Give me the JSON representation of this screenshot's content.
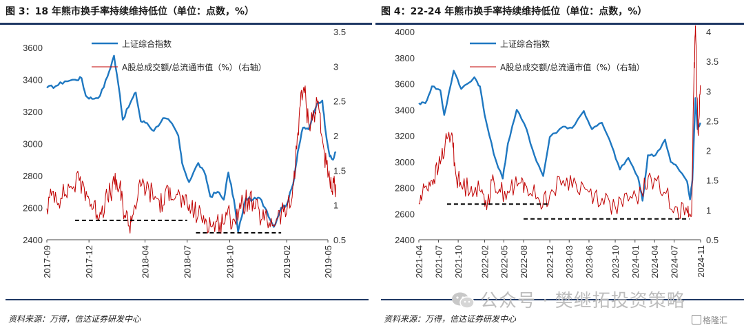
{
  "watermark": "公众号 · 樊继拓投资策略",
  "logo_text": "格隆汇",
  "colors": {
    "index_line": "#1f78c1",
    "turnover_line": "#c00000",
    "rule": "#1f3864",
    "support_line": "#000000"
  },
  "panels": [
    {
      "title": "图 3：18 年熊市换手率持续维持低位（单位：点数，%）",
      "source": "资料来源：万得，信达证券研发中心",
      "chart_data": {
        "type": "line",
        "title": "图 3：18 年熊市换手率持续维持低位（单位：点数，%）",
        "x_ticks": [
          "2017-09",
          "2017-12",
          "2018-04",
          "2018-07",
          "2018-10",
          "2019-02",
          "2019-05"
        ],
        "x_range": [
          "2017-09-01",
          "2019-05-01"
        ],
        "y_left": {
          "min": 2400,
          "max": 3700,
          "ticks": [
            2400,
            2600,
            2800,
            3000,
            3200,
            3400,
            3600
          ]
        },
        "y_right": {
          "min": 0.5,
          "max": 3.5,
          "ticks": [
            0.5,
            1,
            1.5,
            2,
            2.5,
            3,
            3.5
          ]
        },
        "legend": [
          "上证综合指数",
          "A股总成交额/总流通市值（%）（右轴）"
        ],
        "series": [
          {
            "name": "上证综合指数",
            "axis": "left",
            "style": "smooth",
            "points": [
              [
                "2017-09-01",
                3350
              ],
              [
                "2017-09-20",
                3360
              ],
              [
                "2017-10-10",
                3390
              ],
              [
                "2017-11-01",
                3400
              ],
              [
                "2017-11-15",
                3410
              ],
              [
                "2017-11-24",
                3300
              ],
              [
                "2017-12-08",
                3280
              ],
              [
                "2017-12-25",
                3300
              ],
              [
                "2018-01-10",
                3420
              ],
              [
                "2018-01-24",
                3550
              ],
              [
                "2018-02-06",
                3300
              ],
              [
                "2018-02-12",
                3150
              ],
              [
                "2018-03-01",
                3260
              ],
              [
                "2018-03-12",
                3320
              ],
              [
                "2018-03-23",
                3140
              ],
              [
                "2018-04-05",
                3130
              ],
              [
                "2018-04-20",
                3080
              ],
              [
                "2018-05-10",
                3160
              ],
              [
                "2018-05-25",
                3140
              ],
              [
                "2018-06-12",
                3050
              ],
              [
                "2018-06-20",
                2880
              ],
              [
                "2018-07-05",
                2760
              ],
              [
                "2018-07-25",
                2880
              ],
              [
                "2018-08-10",
                2800
              ],
              [
                "2018-08-20",
                2670
              ],
              [
                "2018-09-05",
                2700
              ],
              [
                "2018-09-18",
                2650
              ],
              [
                "2018-09-28",
                2820
              ],
              [
                "2018-10-10",
                2650
              ],
              [
                "2018-10-19",
                2450
              ],
              [
                "2018-11-05",
                2660
              ],
              [
                "2018-11-20",
                2650
              ],
              [
                "2018-12-05",
                2660
              ],
              [
                "2018-12-20",
                2580
              ],
              [
                "2019-01-04",
                2480
              ],
              [
                "2019-01-20",
                2600
              ],
              [
                "2019-02-01",
                2620
              ],
              [
                "2019-02-15",
                2750
              ],
              [
                "2019-02-25",
                2950
              ],
              [
                "2019-03-08",
                3100
              ],
              [
                "2019-03-20",
                3090
              ],
              [
                "2019-04-08",
                3250
              ],
              [
                "2019-04-19",
                3270
              ],
              [
                "2019-04-26",
                3080
              ],
              [
                "2019-05-05",
                2920
              ],
              [
                "2019-05-12",
                2900
              ],
              [
                "2019-05-18",
                2950
              ]
            ]
          },
          {
            "name": "A股总成交额/总流通市值（%）（右轴）",
            "axis": "right",
            "style": "jagged",
            "points": [
              [
                "2017-09-01",
                0.95
              ],
              [
                "2017-09-15",
                1.2
              ],
              [
                "2017-10-01",
                1.1
              ],
              [
                "2017-10-20",
                1.25
              ],
              [
                "2017-11-10",
                1.35
              ],
              [
                "2017-11-25",
                1.2
              ],
              [
                "2017-12-10",
                0.95
              ],
              [
                "2017-12-25",
                0.9
              ],
              [
                "2018-01-10",
                1.1
              ],
              [
                "2018-01-25",
                1.3
              ],
              [
                "2018-02-05",
                1.25
              ],
              [
                "2018-02-12",
                1.0
              ],
              [
                "2018-02-26",
                0.7
              ],
              [
                "2018-03-10",
                1.0
              ],
              [
                "2018-03-25",
                1.3
              ],
              [
                "2018-04-10",
                1.2
              ],
              [
                "2018-04-25",
                1.1
              ],
              [
                "2018-05-10",
                1.0
              ],
              [
                "2018-05-25",
                1.25
              ],
              [
                "2018-06-10",
                1.15
              ],
              [
                "2018-06-25",
                1.0
              ],
              [
                "2018-07-10",
                0.95
              ],
              [
                "2018-07-25",
                0.85
              ],
              [
                "2018-08-10",
                0.8
              ],
              [
                "2018-08-25",
                0.7
              ],
              [
                "2018-09-10",
                0.75
              ],
              [
                "2018-09-25",
                0.85
              ],
              [
                "2018-10-10",
                0.8
              ],
              [
                "2018-10-25",
                0.95
              ],
              [
                "2018-11-10",
                1.1
              ],
              [
                "2018-11-25",
                0.95
              ],
              [
                "2018-12-10",
                0.8
              ],
              [
                "2018-12-25",
                0.75
              ],
              [
                "2019-01-10",
                0.8
              ],
              [
                "2019-01-25",
                0.9
              ],
              [
                "2019-02-10",
                1.0
              ],
              [
                "2019-02-20",
                1.6
              ],
              [
                "2019-03-01",
                2.4
              ],
              [
                "2019-03-10",
                2.7
              ],
              [
                "2019-03-20",
                2.2
              ],
              [
                "2019-04-01",
                2.3
              ],
              [
                "2019-04-10",
                2.5
              ],
              [
                "2019-04-20",
                1.9
              ],
              [
                "2019-05-01",
                1.4
              ],
              [
                "2019-05-10",
                1.2
              ],
              [
                "2019-05-18",
                1.3
              ]
            ]
          }
        ],
        "reference_lines": [
          {
            "axis": "right",
            "from": "2017-11-01",
            "to": "2018-07-01",
            "value": 0.78
          },
          {
            "axis": "right",
            "from": "2018-07-20",
            "to": "2019-01-20",
            "value": 0.6
          }
        ]
      }
    },
    {
      "title": "图 4：22-24 年熊市换手率持续维持低位（单位：点数，%）",
      "source": "资料来源：万得，信达证券研发中心",
      "chart_data": {
        "type": "line",
        "title": "图 4：22-24 年熊市换手率持续维持低位（单位：点数，%）",
        "x_ticks": [
          "2021-04",
          "2021-07",
          "2021-10",
          "2022-02",
          "2022-05",
          "2022-08",
          "2022-12",
          "2023-03",
          "2023-06",
          "2023-10",
          "2024-01",
          "2024-04",
          "2024-07",
          "2024-11"
        ],
        "x_range": [
          "2021-04-01",
          "2024-11-01"
        ],
        "y_left": {
          "min": 2400,
          "max": 4000,
          "ticks": [
            2400,
            2600,
            2800,
            3000,
            3200,
            3400,
            3600,
            3800,
            4000
          ]
        },
        "y_right": {
          "min": 0.5,
          "max": 4,
          "ticks": [
            0.5,
            1,
            1.5,
            2,
            2.5,
            3,
            3.5,
            4
          ]
        },
        "legend": [
          "上证综合指数",
          "A股总成交额/总流通市值（%）（右轴）"
        ],
        "series": [
          {
            "name": "上证综合指数",
            "axis": "left",
            "style": "smooth",
            "points": [
              [
                "2021-04-01",
                3450
              ],
              [
                "2021-05-01",
                3450
              ],
              [
                "2021-06-01",
                3580
              ],
              [
                "2021-07-10",
                3550
              ],
              [
                "2021-07-28",
                3360
              ],
              [
                "2021-09-10",
                3700
              ],
              [
                "2021-10-15",
                3560
              ],
              [
                "2021-12-15",
                3650
              ],
              [
                "2022-01-10",
                3580
              ],
              [
                "2022-02-01",
                3360
              ],
              [
                "2022-03-15",
                3060
              ],
              [
                "2022-04-26",
                2870
              ],
              [
                "2022-05-20",
                3140
              ],
              [
                "2022-06-30",
                3400
              ],
              [
                "2022-08-15",
                3250
              ],
              [
                "2022-09-20",
                3050
              ],
              [
                "2022-10-31",
                2890
              ],
              [
                "2022-12-01",
                3190
              ],
              [
                "2023-01-31",
                3270
              ],
              [
                "2023-03-15",
                3260
              ],
              [
                "2023-05-08",
                3390
              ],
              [
                "2023-06-15",
                3250
              ],
              [
                "2023-07-31",
                3300
              ],
              [
                "2023-09-15",
                3120
              ],
              [
                "2023-10-23",
                2940
              ],
              [
                "2023-12-01",
                3030
              ],
              [
                "2024-01-15",
                2880
              ],
              [
                "2024-02-05",
                2700
              ],
              [
                "2024-03-01",
                3050
              ],
              [
                "2024-04-05",
                3050
              ],
              [
                "2024-05-20",
                3170
              ],
              [
                "2024-06-15",
                3000
              ],
              [
                "2024-07-15",
                2960
              ],
              [
                "2024-08-30",
                2850
              ],
              [
                "2024-09-13",
                2710
              ],
              [
                "2024-09-24",
                2860
              ],
              [
                "2024-10-08",
                3490
              ],
              [
                "2024-10-18",
                3250
              ],
              [
                "2024-10-31",
                3300
              ]
            ]
          },
          {
            "name": "A股总成交额/总流通市值（%）（右轴）",
            "axis": "right",
            "style": "jagged",
            "points": [
              [
                "2021-04-01",
                1.1
              ],
              [
                "2021-05-01",
                1.4
              ],
              [
                "2021-06-01",
                1.5
              ],
              [
                "2021-07-01",
                1.7
              ],
              [
                "2021-08-01",
                2.1
              ],
              [
                "2021-09-01",
                2.3
              ],
              [
                "2021-09-20",
                1.6
              ],
              [
                "2021-10-15",
                1.4
              ],
              [
                "2021-12-01",
                1.4
              ],
              [
                "2022-01-15",
                1.3
              ],
              [
                "2022-02-15",
                1.15
              ],
              [
                "2022-03-15",
                1.5
              ],
              [
                "2022-04-15",
                1.3
              ],
              [
                "2022-06-01",
                1.35
              ],
              [
                "2022-07-15",
                1.45
              ],
              [
                "2022-08-15",
                1.4
              ],
              [
                "2022-10-15",
                1.15
              ],
              [
                "2022-12-01",
                1.25
              ],
              [
                "2023-02-01",
                1.5
              ],
              [
                "2023-04-01",
                1.45
              ],
              [
                "2023-06-01",
                1.3
              ],
              [
                "2023-08-01",
                1.2
              ],
              [
                "2023-10-01",
                1.05
              ],
              [
                "2023-12-01",
                1.15
              ],
              [
                "2024-02-01",
                1.3
              ],
              [
                "2024-03-15",
                1.55
              ],
              [
                "2024-05-15",
                1.3
              ],
              [
                "2024-07-15",
                1.05
              ],
              [
                "2024-09-01",
                0.95
              ],
              [
                "2024-09-20",
                0.9
              ],
              [
                "2024-09-30",
                3.0
              ],
              [
                "2024-10-08",
                4.1
              ],
              [
                "2024-10-20",
                2.3
              ],
              [
                "2024-10-31",
                3.1
              ]
            ]
          }
        ],
        "reference_lines": [
          {
            "axis": "right",
            "from": "2021-08-10",
            "to": "2022-12-01",
            "value": 1.1
          },
          {
            "axis": "right",
            "from": "2022-08-01",
            "to": "2024-09-10",
            "value": 0.85
          }
        ]
      }
    }
  ]
}
